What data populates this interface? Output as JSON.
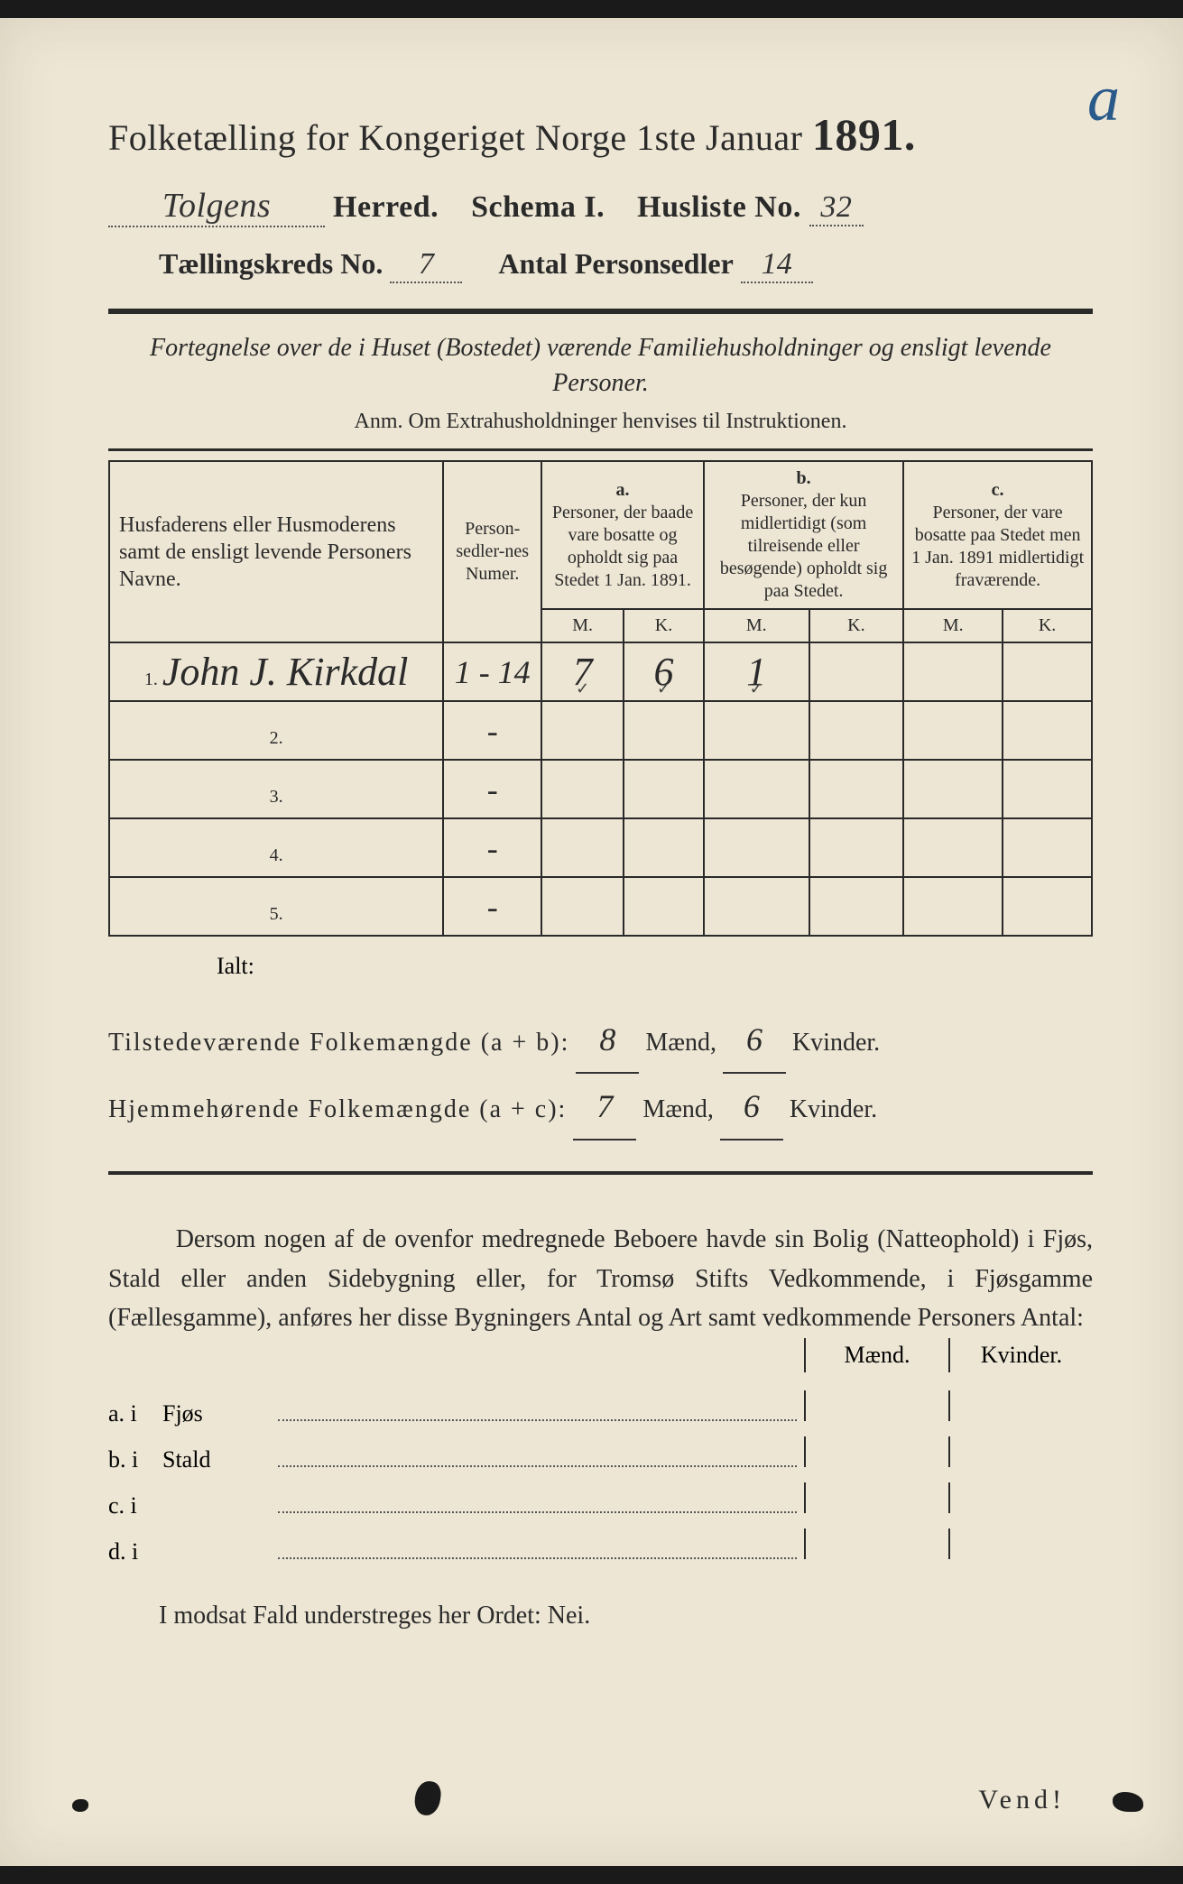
{
  "annotation_corner": "a",
  "title": {
    "text_prefix": "Folketælling for Kongeriget Norge 1ste Januar",
    "year": "1891."
  },
  "header": {
    "herred_value": "Tolgens",
    "herred_label": "Herred.",
    "schema_label": "Schema I.",
    "husliste_label": "Husliste No.",
    "husliste_value": "32",
    "kreds_label": "Tællingskreds No.",
    "kreds_value": "7",
    "antal_label": "Antal Personsedler",
    "antal_value": "14"
  },
  "description": {
    "line": "Fortegnelse over de i Huset (Bostedet) værende Familiehusholdninger og ensligt levende Personer.",
    "anm": "Anm.  Om Extrahusholdninger henvises til Instruktionen."
  },
  "table": {
    "head_name": "Husfaderens eller Husmoderens samt de ensligt levende Personers Navne.",
    "head_num": "Person-sedler-nes Numer.",
    "col_a_label": "a.",
    "col_a_text": "Personer, der baade vare bosatte og opholdt sig paa Stedet 1 Jan. 1891.",
    "col_b_label": "b.",
    "col_b_text": "Personer, der kun midlertidigt (som tilreisende eller besøgende) opholdt sig paa Stedet.",
    "col_c_label": "c.",
    "col_c_text": "Personer, der vare bosatte paa Stedet men 1 Jan. 1891 midlertidigt fraværende.",
    "m": "M.",
    "k": "K.",
    "rows": [
      {
        "n": "1.",
        "name": "John J. Kirkdal",
        "num": "1 - 14",
        "a_m": "7",
        "a_k": "6",
        "b_m": "1",
        "b_k": "",
        "c_m": "",
        "c_k": ""
      },
      {
        "n": "2.",
        "name": "",
        "num": "-",
        "a_m": "",
        "a_k": "",
        "b_m": "",
        "b_k": "",
        "c_m": "",
        "c_k": ""
      },
      {
        "n": "3.",
        "name": "",
        "num": "-",
        "a_m": "",
        "a_k": "",
        "b_m": "",
        "b_k": "",
        "c_m": "",
        "c_k": ""
      },
      {
        "n": "4.",
        "name": "",
        "num": "-",
        "a_m": "",
        "a_k": "",
        "b_m": "",
        "b_k": "",
        "c_m": "",
        "c_k": ""
      },
      {
        "n": "5.",
        "name": "",
        "num": "-",
        "a_m": "",
        "a_k": "",
        "b_m": "",
        "b_k": "",
        "c_m": "",
        "c_k": ""
      }
    ]
  },
  "ialt_label": "Ialt:",
  "totals": {
    "line1_label": "Tilstedeværende Folkemængde (a + b):",
    "line1_m": "8",
    "line1_k": "6",
    "line2_label": "Hjemmehørende Folkemængde (a + c):",
    "line2_m": "7",
    "line2_k": "6",
    "maend": "Mænd,",
    "kvinder": "Kvinder."
  },
  "paragraph": "Dersom nogen af de ovenfor medregnede Beboere havde sin Bolig (Natteophold) i Fjøs, Stald eller anden Sidebygning eller, for Tromsø Stifts Vedkommende, i Fjøsgamme (Fællesgamme), anføres her disse Bygningers Antal og Art samt vedkommende Personers Antal:",
  "subhead_m": "Mænd.",
  "subhead_k": "Kvinder.",
  "subrows": [
    {
      "lab": "a.  i",
      "lab2": "Fjøs"
    },
    {
      "lab": "b.  i",
      "lab2": "Stald"
    },
    {
      "lab": "c.  i",
      "lab2": ""
    },
    {
      "lab": "d.  i",
      "lab2": ""
    }
  ],
  "nei_line": "I modsat Fald understreges her Ordet: Nei.",
  "vend": "Vend!"
}
